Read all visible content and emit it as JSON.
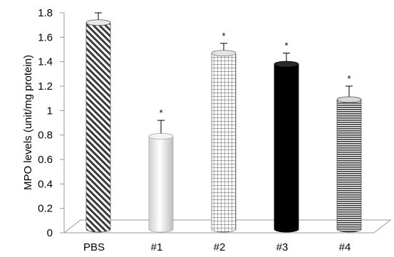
{
  "chart_data": {
    "type": "bar",
    "title": "",
    "xlabel": "",
    "ylabel": "MPO levels (unit/mg protein)",
    "ylim": [
      0,
      1.8
    ],
    "y_ticks": [
      "0",
      "0.2",
      "0.4",
      "0.6",
      "0.8",
      "1",
      "1.2",
      "1.4",
      "1.6",
      "1.8"
    ],
    "categories": [
      "PBS",
      "#1",
      "#2",
      "#3",
      "#4"
    ],
    "values": [
      1.72,
      0.79,
      1.47,
      1.38,
      1.09
    ],
    "errors": [
      0.08,
      0.13,
      0.08,
      0.09,
      0.11
    ],
    "significance": [
      "",
      "*",
      "*",
      "*",
      "*"
    ],
    "bar_fills": [
      "diagonal-hatch",
      "white",
      "grid",
      "black",
      "horizontal-lines"
    ],
    "grid": false,
    "legend": "none",
    "style": "3d-cylinder"
  }
}
